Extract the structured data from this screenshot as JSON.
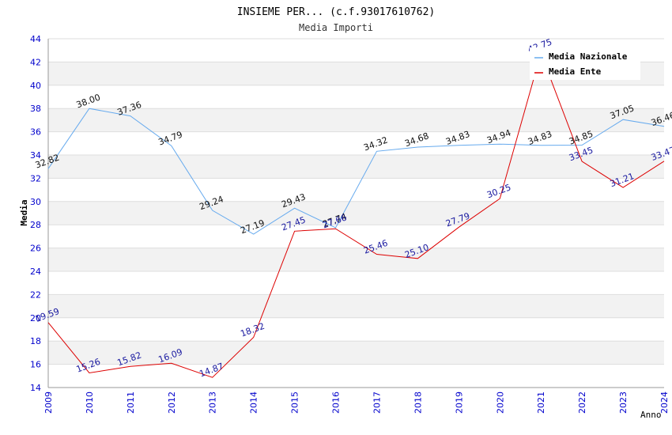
{
  "chart_data": {
    "type": "line",
    "title": "INSIEME PER... (c.f.93017610762)",
    "subtitle": "Media Importi",
    "xlabel": "Anno",
    "ylabel": "Media",
    "ylim": [
      14,
      44
    ],
    "y_ticks": [
      "14",
      "16",
      "18",
      "20",
      "22",
      "24",
      "26",
      "28",
      "30",
      "32",
      "34",
      "36",
      "38",
      "40",
      "42",
      "44"
    ],
    "categories": [
      "2009",
      "2010",
      "2011",
      "2012",
      "2013",
      "2014",
      "2015",
      "2016",
      "2017",
      "2018",
      "2019",
      "2020",
      "2021",
      "2022",
      "2023",
      "2024"
    ],
    "legend_position": "top-right",
    "grid": true,
    "series": [
      {
        "name": "Media Nazionale",
        "color": "#66aaee",
        "label_color": "#111111",
        "values": [
          32.82,
          38.0,
          37.36,
          34.79,
          29.24,
          27.19,
          29.43,
          27.74,
          34.32,
          34.68,
          34.83,
          34.94,
          34.83,
          34.85,
          37.05,
          36.46
        ],
        "labels": [
          "32.82",
          "38.00",
          "37.36",
          "34.79",
          "29.24",
          "27.19",
          "29.43",
          "27.74",
          "34.32",
          "34.68",
          "34.83",
          "34.94",
          "34.83",
          "34.85",
          "37.05",
          "36.46"
        ]
      },
      {
        "name": "Media Ente",
        "color": "#dd0000",
        "label_color": "#1a1aa0",
        "values": [
          19.59,
          15.26,
          15.82,
          16.09,
          14.87,
          18.32,
          27.45,
          27.66,
          25.46,
          25.1,
          27.79,
          30.25,
          42.75,
          33.45,
          31.21,
          33.47
        ],
        "labels": [
          "19.59",
          "15.26",
          "15.82",
          "16.09",
          "14.87",
          "18.32",
          "27.45",
          "27.66",
          "25.46",
          "25.10",
          "27.79",
          "30.25",
          "42.75",
          "33.45",
          "31.21",
          "33.47"
        ]
      }
    ]
  },
  "colors": {
    "axis_tick_text": "#0000cc",
    "grid_band": "#f2f2f2",
    "grid_line": "#dddddd",
    "title_text": "#000000",
    "subtitle_text": "#333333"
  }
}
